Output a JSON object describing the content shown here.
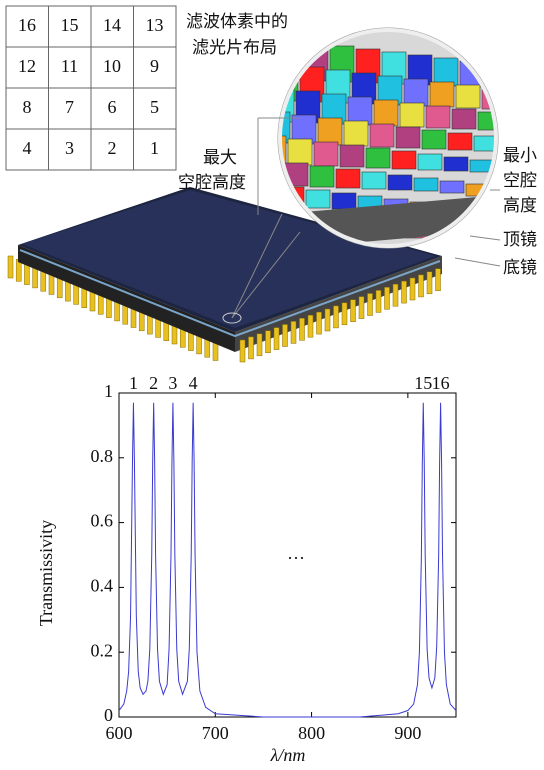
{
  "grid": {
    "rows": [
      [
        "16",
        "15",
        "14",
        "13"
      ],
      [
        "12",
        "11",
        "10",
        "9"
      ],
      [
        "8",
        "7",
        "6",
        "5"
      ],
      [
        "4",
        "3",
        "2",
        "1"
      ]
    ]
  },
  "labels": {
    "layout": [
      "滤波体素中的",
      "滤光片布局"
    ],
    "max_cavity": [
      "最大",
      "空腔高度"
    ],
    "min_cavity": [
      "最小",
      "空腔",
      "高度"
    ],
    "top_mirror": "顶镜",
    "bottom_mirror": "底镜"
  },
  "chart_data": {
    "type": "line",
    "ylabel": "Transmissivity",
    "xlabel": "λ/nm",
    "peak_labels": [
      "1",
      "2",
      "3",
      "4",
      "15",
      "16"
    ],
    "note": "···",
    "x": [
      600,
      605,
      608,
      610,
      612,
      614,
      615,
      616,
      618,
      620,
      622,
      625,
      628,
      630,
      632,
      634,
      635,
      636,
      637,
      638,
      640,
      642,
      646,
      650,
      652,
      654,
      655,
      656,
      657,
      658,
      660,
      662,
      666,
      671,
      673,
      675,
      676,
      677,
      678,
      679,
      681,
      684,
      690,
      700,
      750,
      800,
      850,
      890,
      900,
      906,
      910,
      912,
      914,
      915,
      916,
      917,
      918,
      920,
      922,
      925,
      928,
      930,
      932,
      933,
      934,
      935,
      936,
      938,
      940,
      944,
      950
    ],
    "series": [
      {
        "color": "#3a3ad0",
        "values": [
          0.02,
          0.04,
          0.08,
          0.14,
          0.31,
          0.79,
          0.97,
          0.79,
          0.31,
          0.14,
          0.09,
          0.07,
          0.08,
          0.11,
          0.21,
          0.5,
          0.79,
          0.97,
          0.79,
          0.5,
          0.21,
          0.11,
          0.07,
          0.1,
          0.21,
          0.5,
          0.79,
          0.97,
          0.79,
          0.5,
          0.21,
          0.11,
          0.07,
          0.11,
          0.21,
          0.5,
          0.79,
          0.97,
          0.79,
          0.5,
          0.2,
          0.08,
          0.03,
          0.01,
          0,
          0,
          0,
          0.01,
          0.02,
          0.04,
          0.1,
          0.2,
          0.49,
          0.78,
          0.97,
          0.79,
          0.5,
          0.21,
          0.12,
          0.09,
          0.12,
          0.22,
          0.5,
          0.79,
          0.97,
          0.79,
          0.5,
          0.2,
          0.1,
          0.04,
          0.02
        ]
      }
    ],
    "xlim": [
      600,
      950
    ],
    "ylim": [
      0,
      1
    ],
    "xticks": [
      600,
      700,
      800,
      900
    ],
    "yticks": [
      0,
      0.2,
      0.4,
      0.6,
      0.8,
      1
    ]
  }
}
